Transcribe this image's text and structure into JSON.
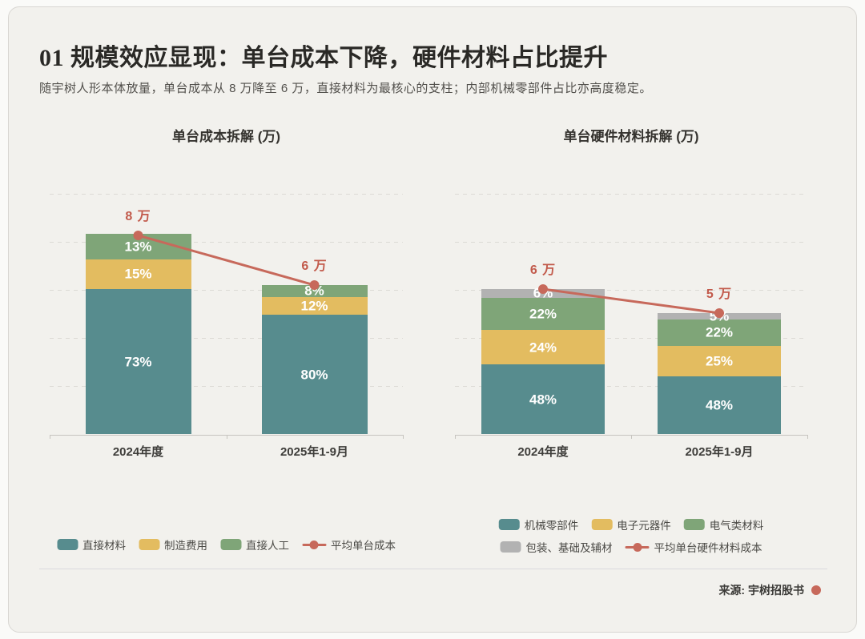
{
  "page": {
    "title": "01 规模效应显现：单台成本下降，硬件材料占比提升",
    "subtitle": "随宇树人形本体放量，单台成本从 8 万降至 6 万，直接材料为最核心的支柱；内部机械零部件占比亦高度稳定。",
    "source_label": "来源: 宇树招股书"
  },
  "colors": {
    "background": "#f2f1ed",
    "card_border": "#d8d6d2",
    "teal": "#578c8e",
    "yellow": "#e3bc60",
    "green": "#7fa578",
    "gray": "#b2b2b2",
    "trend_red": "#c7695b",
    "total_label_red": "#c25a4b",
    "grid": "#dcdad5",
    "axis": "#c6c4bf",
    "pct_label": "#ffffff"
  },
  "chart_data": [
    {
      "type": "bar",
      "stacked": true,
      "title": "单台成本拆解 (万)",
      "categories": [
        "2024年度",
        "2025年1-9月"
      ],
      "unit": "万",
      "ylim": [
        0,
        10
      ],
      "grid_step": 2,
      "grid_on": true,
      "legend_position": "bottom",
      "series": [
        {
          "name": "直接材料",
          "color": "#578c8e",
          "pct": [
            73,
            80
          ]
        },
        {
          "name": "制造费用",
          "color": "#e3bc60",
          "pct": [
            15,
            12
          ]
        },
        {
          "name": "直接人工",
          "color": "#7fa578",
          "pct": [
            13,
            8
          ]
        }
      ],
      "pct_labels": [
        [
          "73%",
          "80%"
        ],
        [
          "15%",
          "12%"
        ],
        [
          "13%",
          "8%"
        ]
      ],
      "line_series": {
        "name": "平均单台成本",
        "color": "#c7695b",
        "values": [
          8,
          6
        ],
        "labels": [
          "8 万",
          "6 万"
        ]
      },
      "legend_layout": [
        [
          0,
          1,
          2,
          "line"
        ]
      ]
    },
    {
      "type": "bar",
      "stacked": true,
      "title": "单台硬件材料拆解 (万)",
      "categories": [
        "2024年度",
        "2025年1-9月"
      ],
      "unit": "万",
      "ylim": [
        0,
        10
      ],
      "grid_step": 2,
      "grid_on": true,
      "legend_position": "bottom",
      "series": [
        {
          "name": "机械零部件",
          "color": "#578c8e",
          "pct": [
            48,
            48
          ]
        },
        {
          "name": "电子元器件",
          "color": "#e3bc60",
          "pct": [
            24,
            25
          ]
        },
        {
          "name": "电气类材料",
          "color": "#7fa578",
          "pct": [
            22,
            22
          ]
        },
        {
          "name": "包装、基础及辅材",
          "color": "#b2b2b2",
          "pct": [
            6,
            5
          ]
        }
      ],
      "pct_labels": [
        [
          "48%",
          "48%"
        ],
        [
          "24%",
          "25%"
        ],
        [
          "22%",
          "22%"
        ],
        [
          "6%",
          "5%"
        ]
      ],
      "line_series": {
        "name": "平均单台硬件材料成本",
        "color": "#c7695b",
        "values": [
          6,
          5
        ],
        "labels": [
          "6 万",
          "5 万"
        ]
      },
      "legend_layout": [
        [
          0,
          1,
          2
        ],
        [
          3,
          "line"
        ]
      ]
    }
  ]
}
